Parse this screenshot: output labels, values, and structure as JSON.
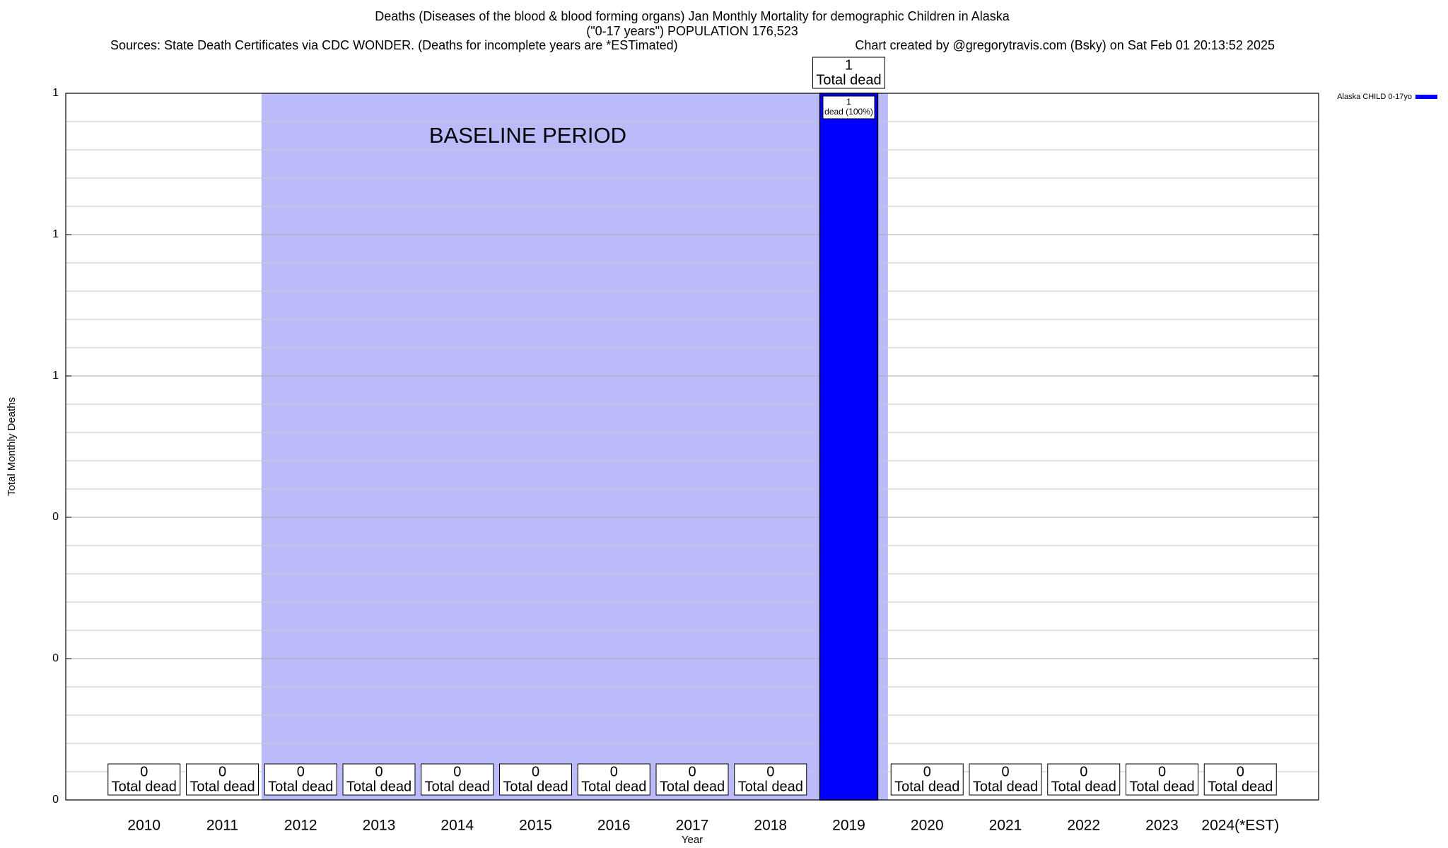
{
  "chart_data": {
    "type": "bar",
    "title": "Deaths (Diseases of the blood & blood forming organs) Jan Monthly Mortality for demographic Children in Alaska",
    "subtitle": "(\"0-17 years\") POPULATION 176,523",
    "source": "Sources: State Death Certificates via CDC WONDER. (Deaths for incomplete years are *ESTimated)",
    "credit": "Chart created by @gregorytravis.com (Bsky) on Sat Feb 01 20:13:52 2025",
    "x_label": "Year",
    "y_label": "Total Monthly Deaths",
    "categories": [
      "2010",
      "2011",
      "2012",
      "2013",
      "2014",
      "2015",
      "2016",
      "2017",
      "2018",
      "2019",
      "2020",
      "2021",
      "2022",
      "2023",
      "2024(*EST)"
    ],
    "series": [
      {
        "name": "Alaska CHILD 0-17yo",
        "color": "#0000ff",
        "values": [
          0,
          0,
          0,
          0,
          0,
          0,
          0,
          0,
          0,
          1,
          0,
          0,
          0,
          0,
          0
        ],
        "inner_labels": [
          null,
          null,
          null,
          null,
          null,
          null,
          null,
          null,
          null,
          "dead (100%)",
          null,
          null,
          null,
          null,
          null
        ]
      }
    ],
    "total_label": "Total dead",
    "shaded_region": {
      "label": "BASELINE PERIOD",
      "from": "2012",
      "to": "2019",
      "color": "#bbbbfa"
    },
    "ylim": [
      0,
      1
    ],
    "yticks": [
      0,
      {
        "value": 0.2,
        "label": "0"
      },
      {
        "value": 0.4,
        "label": "0"
      },
      {
        "value": 0.6,
        "label": "1"
      },
      {
        "value": 0.8,
        "label": "1"
      },
      {
        "value": 1,
        "label": "1"
      }
    ],
    "minor_yticks": [
      0.04,
      0.08,
      0.12,
      0.16,
      0.24,
      0.28,
      0.32,
      0.36,
      0.44,
      0.48,
      0.52,
      0.56,
      0.64,
      0.68,
      0.72,
      0.76,
      0.84,
      0.88,
      0.92,
      0.96
    ],
    "grid": true,
    "legend": "top-right"
  }
}
